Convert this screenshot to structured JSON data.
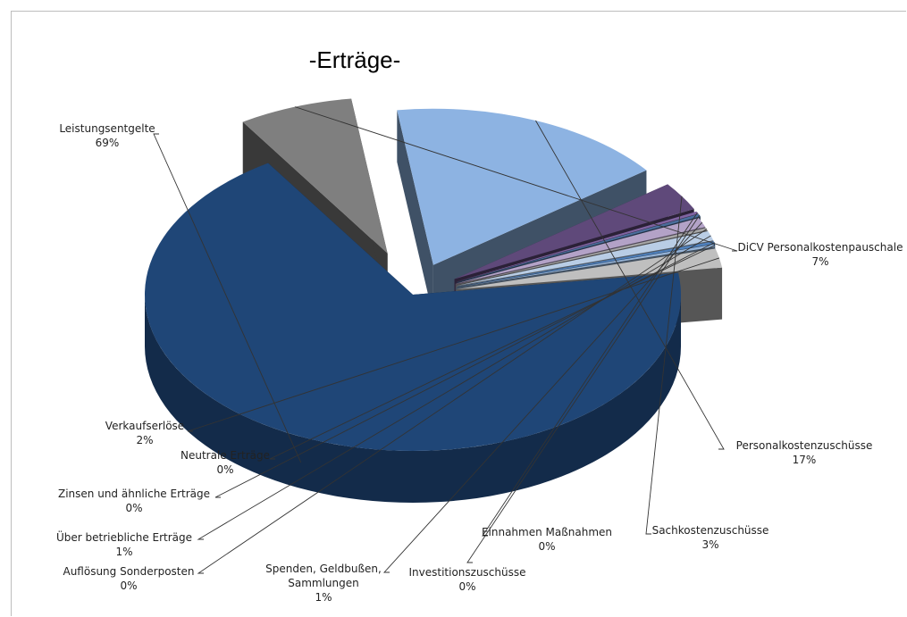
{
  "chart_data": {
    "type": "pie",
    "title": "-Erträge-",
    "slices": [
      {
        "lines": [
          "Leistungsentgelte"
        ],
        "pct_label": "69%",
        "value": 69,
        "color": "#1f4677"
      },
      {
        "lines": [
          "DiCV Personalkostenpauschale"
        ],
        "pct_label": "7%",
        "value": 7,
        "color": "#7f7f7f"
      },
      {
        "lines": [
          "Personalkostenzuschüsse"
        ],
        "pct_label": "17%",
        "value": 17,
        "color": "#8db3e2"
      },
      {
        "lines": [
          "Sachkostenzuschüsse"
        ],
        "pct_label": "3%",
        "value": 3,
        "color": "#5f497a"
      },
      {
        "lines": [
          "Einnahmen Maßnahmen"
        ],
        "pct_label": "0%",
        "value": 0,
        "color": "#8064a2"
      },
      {
        "lines": [
          "Investitionszuschüsse"
        ],
        "pct_label": "0%",
        "value": 0,
        "color": "#4b6e9c"
      },
      {
        "lines": [
          "Spenden,  Geldbußen,",
          "Sammlungen"
        ],
        "pct_label": "1%",
        "value": 1,
        "color": "#b3a2c7"
      },
      {
        "lines": [
          "Auflösung Sonderposten"
        ],
        "pct_label": "0%",
        "value": 0,
        "color": "#a6a6a6"
      },
      {
        "lines": [
          "Über betriebliche Erträge"
        ],
        "pct_label": "1%",
        "value": 1,
        "color": "#b9cde5"
      },
      {
        "lines": [
          "Zinsen und ähnliche Erträge"
        ],
        "pct_label": "0%",
        "value": 0,
        "color": "#4f81bd"
      },
      {
        "lines": [
          "Neutrale Erträge"
        ],
        "pct_label": "0%",
        "value": 0,
        "color": "#95b3d7"
      },
      {
        "lines": [
          "Verkaufserlöse"
        ],
        "pct_label": "2%",
        "value": 2,
        "color": "#bfbfbf"
      }
    ]
  }
}
